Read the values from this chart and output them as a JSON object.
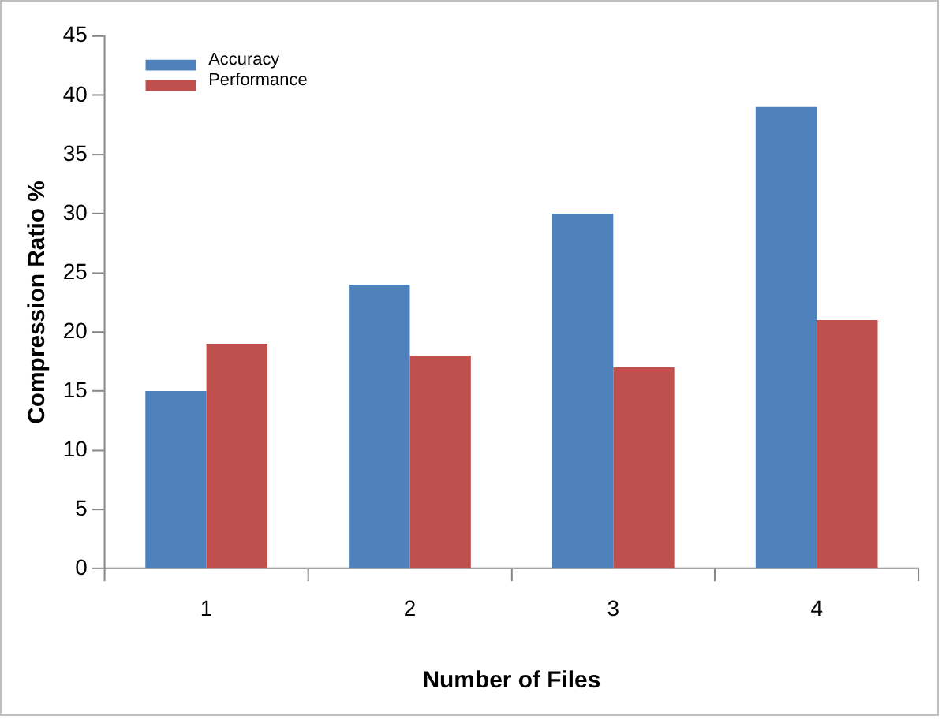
{
  "chart_data": {
    "type": "bar",
    "xlabel": "Number of Files",
    "ylabel": "Compression Ratio %",
    "categories": [
      "1",
      "2",
      "3",
      "4"
    ],
    "series": [
      {
        "name": "Accuracy",
        "color": "#4f81bd",
        "values": [
          15,
          24,
          30,
          39
        ]
      },
      {
        "name": "Performance",
        "color": "#c0504d",
        "values": [
          19,
          18,
          17,
          21
        ]
      }
    ],
    "ylim": [
      0,
      45
    ],
    "yticks": [
      0,
      5,
      10,
      15,
      20,
      25,
      30,
      35,
      40,
      45
    ],
    "grid": false,
    "legend": "top left"
  }
}
